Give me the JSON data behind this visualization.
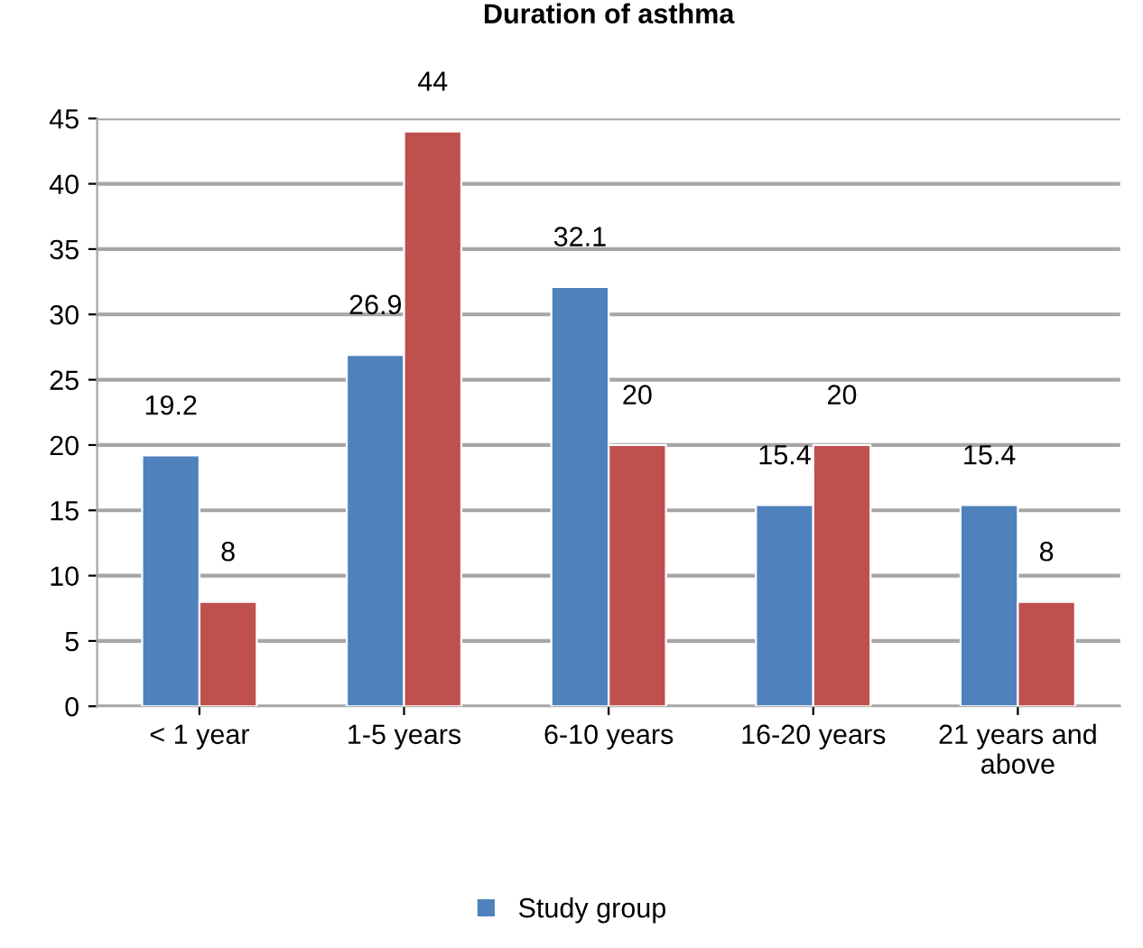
{
  "chart_data": {
    "type": "bar",
    "title": "Duration of asthma",
    "categories": [
      "< 1 year",
      "1-5 years",
      "6-10 years",
      "16-20 years",
      "21 years and\nabove"
    ],
    "series": [
      {
        "name": "Study group",
        "color": "#4f81bd",
        "values": [
          19.2,
          26.9,
          32.1,
          15.4,
          15.4
        ]
      },
      {
        "color": "#c0504d",
        "values": [
          8,
          44,
          20,
          20,
          8
        ]
      }
    ],
    "ylim": [
      0,
      45
    ],
    "yticks": [
      0,
      5,
      10,
      15,
      20,
      25,
      30,
      35,
      40,
      45
    ],
    "grid": "y",
    "legend": "bottom",
    "data_labels": true
  }
}
